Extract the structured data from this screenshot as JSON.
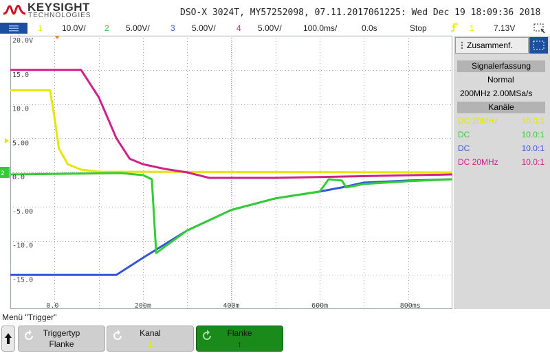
{
  "brand": {
    "name": "KEYSIGHT",
    "subtitle": "TECHNOLOGIES"
  },
  "header": {
    "title": "DSO-X 3024T, MY57252098, 07.11.2017061225: Wed Dec 19 18:09:36 2018"
  },
  "status": {
    "ch1_num": "1",
    "ch1_scale": "10.0V/",
    "ch2_num": "2",
    "ch2_scale": "5.00V/",
    "ch3_num": "3",
    "ch3_scale": "5.00V/",
    "ch4_num": "4",
    "ch4_scale": "5.00V/",
    "timebase": "100.0ms/",
    "delay": "0.0s",
    "run_state": "Stop",
    "trigger_channel": "1",
    "trigger_level": "7.13V"
  },
  "colors": {
    "ch1": "#e6e600",
    "ch2": "#33cc33",
    "ch3": "#3355dd",
    "ch4": "#d0208a",
    "grid": "#9aa6a8",
    "softkey_active": "#1a8a1a"
  },
  "grid": {
    "y_labels": [
      "20.0V",
      "15.0",
      "10.0",
      "5.00",
      "0.0",
      "-5.00",
      "-10.0",
      "-15.0"
    ],
    "x_labels": [
      "0.0",
      "200m",
      "400m",
      "600m",
      "800ms"
    ]
  },
  "sidepanel": {
    "tab_label": "Zusammenf.",
    "section1": "Signalerfassung",
    "mode": "Normal",
    "rates": "200MHz  2.00MSa/s",
    "section2": "Kanäle",
    "channels": [
      {
        "left": "DC  20MHz",
        "right": "10.0:1"
      },
      {
        "left": "DC",
        "right": "10.0:1"
      },
      {
        "left": "DC",
        "right": "10.0:1"
      },
      {
        "left": "DC  20MHz",
        "right": "10.0:1"
      }
    ]
  },
  "menu": {
    "title": "Menü \"Trigger\"",
    "softkeys": [
      {
        "line1": "Triggertyp",
        "line2": "Flanke"
      },
      {
        "line1": "Kanal",
        "line2": "1"
      },
      {
        "line1": "Flanke",
        "line2": "↑"
      }
    ]
  },
  "chart_data": {
    "type": "line",
    "xlabel": "",
    "ylabel": "",
    "xlim": [
      -0.1,
      0.9
    ],
    "ylim": [
      -20,
      20
    ],
    "x_unit": "s",
    "y_unit": "V",
    "series": [
      {
        "color": "#e6e600",
        "points": [
          [
            -0.1,
            12
          ],
          [
            -0.01,
            12
          ],
          [
            0.0,
            8
          ],
          [
            0.01,
            3.5
          ],
          [
            0.03,
            1.2
          ],
          [
            0.06,
            0.4
          ],
          [
            0.1,
            0.1
          ],
          [
            0.9,
            0.0
          ]
        ]
      },
      {
        "color": "#d0208a",
        "points": [
          [
            -0.1,
            15
          ],
          [
            0.06,
            15
          ],
          [
            0.1,
            11
          ],
          [
            0.14,
            5
          ],
          [
            0.17,
            2
          ],
          [
            0.2,
            1.2
          ],
          [
            0.25,
            0.5
          ],
          [
            0.3,
            0
          ],
          [
            0.35,
            -0.8
          ],
          [
            0.5,
            -0.8
          ],
          [
            0.9,
            -0.3
          ]
        ]
      },
      {
        "color": "#3355dd",
        "points": [
          [
            -0.1,
            -15
          ],
          [
            0.14,
            -15
          ],
          [
            0.2,
            -12.5
          ],
          [
            0.3,
            -8.5
          ],
          [
            0.4,
            -5.5
          ],
          [
            0.5,
            -3.8
          ],
          [
            0.6,
            -2.8
          ],
          [
            0.65,
            -2.2
          ],
          [
            0.7,
            -1.5
          ],
          [
            0.8,
            -1.2
          ],
          [
            0.9,
            -1.0
          ]
        ]
      },
      {
        "color": "#33cc33",
        "points": [
          [
            -0.1,
            -0.3
          ],
          [
            0.15,
            -0.1
          ],
          [
            0.2,
            -0.4
          ],
          [
            0.22,
            -1
          ],
          [
            0.23,
            -11.8
          ],
          [
            0.3,
            -8.5
          ],
          [
            0.4,
            -5.5
          ],
          [
            0.5,
            -3.8
          ],
          [
            0.6,
            -2.8
          ],
          [
            0.62,
            -1
          ],
          [
            0.65,
            -1.2
          ],
          [
            0.66,
            -2.2
          ],
          [
            0.7,
            -1.7
          ],
          [
            0.8,
            -1.3
          ],
          [
            0.9,
            -1.0
          ]
        ]
      }
    ]
  }
}
